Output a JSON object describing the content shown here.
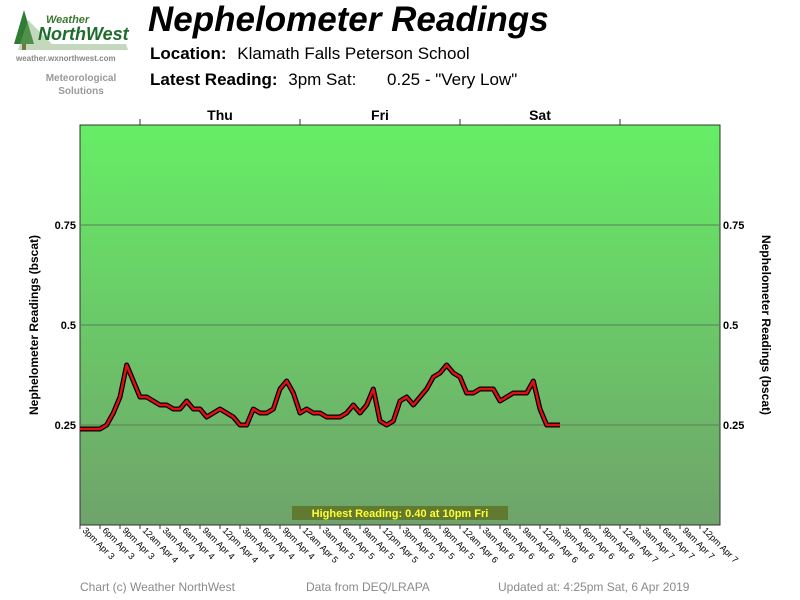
{
  "logo": {
    "word1": "Weather",
    "word2": "NorthWest",
    "url": "weather.wxnorthwest.com",
    "tagline_line1": "Meteorological",
    "tagline_line2": "Solutions"
  },
  "header": {
    "title": "Nephelometer Readings",
    "location_label": "Location:",
    "location_value": "Klamath Falls Peterson School",
    "latest_label": "Latest Reading:",
    "latest_time": "3pm Sat:",
    "latest_value": "0.25 - \"Very Low\""
  },
  "footer": {
    "copyright": "Chart (c) Weather NorthWest",
    "source": "Data from DEQ/LRAPA",
    "updated": "Updated at: 4:25pm Sat, 6 Apr 2019"
  },
  "colors": {
    "line": "#e01010",
    "line_shadow": "#000000",
    "plot_top": "#66ee66",
    "plot_bottom": "#6fa36a",
    "annotation_bg": "#555500",
    "annotation_text": "#ffff33"
  },
  "chart_data": {
    "type": "line",
    "title": "Nephelometer Readings",
    "ylabel": "Nephelometer Readings (bscat)",
    "ylabel_right": "Nephelometer Readings (bscat)",
    "ylim": [
      0,
      1
    ],
    "yticks": [
      0.25,
      0.5,
      0.75
    ],
    "ytick_labels": [
      "0.25",
      "0.5",
      "0.75"
    ],
    "grid": true,
    "x_unit_hours_per_point": 1,
    "xlim_hours": [
      0,
      96
    ],
    "x_tick_step_hours": 3,
    "x_tick_labels": [
      "3pm Apr 3",
      "6pm Apr 3",
      "9pm Apr 3",
      "12am Apr 4",
      "3am Apr 4",
      "6am Apr 4",
      "9am Apr 4",
      "12pm Apr 4",
      "3pm Apr 4",
      "6pm Apr 4",
      "9pm Apr 4",
      "12am Apr 5",
      "3am Apr 5",
      "6am Apr 5",
      "9am Apr 5",
      "12pm Apr 5",
      "3pm Apr 5",
      "6pm Apr 5",
      "9pm Apr 5",
      "12am Apr 6",
      "3am Apr 6",
      "6am Apr 6",
      "9am Apr 6",
      "12pm Apr 6",
      "3pm Apr 6",
      "6pm Apr 6",
      "9pm Apr 6",
      "12am Apr 7",
      "3am Apr 7",
      "6am Apr 7",
      "9am Apr 7",
      "12pm Apr 7"
    ],
    "day_labels": [
      {
        "label": "Thu",
        "start_hour": 9,
        "end_hour": 33
      },
      {
        "label": "Fri",
        "start_hour": 33,
        "end_hour": 57
      },
      {
        "label": "Sat",
        "start_hour": 57,
        "end_hour": 81
      }
    ],
    "series": [
      {
        "x_start_label": "3pm Apr 3",
        "values": [
          0.24,
          0.24,
          0.24,
          0.24,
          0.25,
          0.28,
          0.32,
          0.4,
          0.36,
          0.32,
          0.32,
          0.31,
          0.3,
          0.3,
          0.29,
          0.29,
          0.31,
          0.29,
          0.29,
          0.27,
          0.28,
          0.29,
          0.28,
          0.27,
          0.25,
          0.25,
          0.29,
          0.28,
          0.28,
          0.29,
          0.34,
          0.36,
          0.33,
          0.28,
          0.29,
          0.28,
          0.28,
          0.27,
          0.27,
          0.27,
          0.28,
          0.3,
          0.28,
          0.3,
          0.34,
          0.26,
          0.25,
          0.26,
          0.31,
          0.32,
          0.3,
          0.32,
          0.34,
          0.37,
          0.38,
          0.4,
          0.38,
          0.37,
          0.33,
          0.33,
          0.34,
          0.34,
          0.34,
          0.31,
          0.32,
          0.33,
          0.33,
          0.33,
          0.36,
          0.29,
          0.25,
          0.25,
          0.25
        ]
      }
    ],
    "annotation": "Highest Reading: 0.40 at 10pm Fri"
  }
}
